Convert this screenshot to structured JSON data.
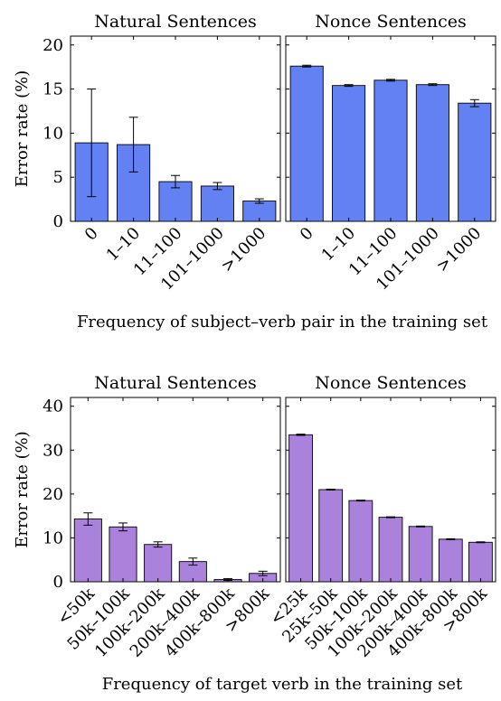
{
  "chart_data": [
    {
      "type": "bar",
      "title": "Natural Sentences",
      "ylabel": "Error rate (%)",
      "xlabel": "Frequency of subject–verb pair in the training set",
      "ylim": [
        0,
        21
      ],
      "yticks": [
        0,
        5,
        10,
        15,
        20
      ],
      "color": "#6381f2",
      "categories": [
        "0",
        "1–10",
        "11–100",
        "101–1000",
        ">1000"
      ],
      "values": [
        8.9,
        8.7,
        4.5,
        4.0,
        2.3
      ],
      "error": [
        6.1,
        3.1,
        0.7,
        0.4,
        0.25
      ]
    },
    {
      "type": "bar",
      "title": "Nonce Sentences",
      "ylabel": "",
      "xlabel": "Frequency of subject–verb pair in the training set",
      "ylim": [
        0,
        21
      ],
      "yticks": [
        0,
        5,
        10,
        15,
        20
      ],
      "color": "#6381f2",
      "categories": [
        "0",
        "1–10",
        "11–100",
        "101–1000",
        ">1000"
      ],
      "values": [
        17.6,
        15.4,
        16.0,
        15.5,
        13.4
      ],
      "error": [
        0.1,
        0.1,
        0.1,
        0.1,
        0.4
      ]
    },
    {
      "type": "bar",
      "title": "Natural Sentences",
      "ylabel": "Error rate (%)",
      "xlabel": "Frequency of target verb in the training set",
      "ylim": [
        0,
        42
      ],
      "yticks": [
        0,
        10,
        20,
        30,
        40
      ],
      "color": "#ab82db",
      "categories": [
        "<50k",
        "50k–100k",
        "100k–200k",
        "200k–400k",
        "400k–800k",
        ">800k"
      ],
      "values": [
        14.3,
        12.5,
        8.5,
        4.6,
        0.5,
        1.9
      ],
      "error": [
        1.4,
        0.9,
        0.6,
        0.8,
        0.2,
        0.5
      ]
    },
    {
      "type": "bar",
      "title": "Nonce Sentences",
      "ylabel": "",
      "xlabel": "Frequency of target verb in the training set",
      "ylim": [
        0,
        42
      ],
      "yticks": [
        0,
        10,
        20,
        30,
        40
      ],
      "color": "#ab82db",
      "categories": [
        "<25k",
        "25k–50k",
        "50k–100k",
        "100k–200k",
        "200k–400k",
        "400k–800k",
        ">800k"
      ],
      "values": [
        33.5,
        21.0,
        18.5,
        14.7,
        12.6,
        9.7,
        9.0
      ],
      "error": [
        0.15,
        0.1,
        0.1,
        0.1,
        0.1,
        0.1,
        0.1
      ]
    }
  ],
  "figure": {
    "top_xlabel": "Frequency of subject–verb pair in the training set",
    "bottom_xlabel": "Frequency of target verb in the training set"
  }
}
